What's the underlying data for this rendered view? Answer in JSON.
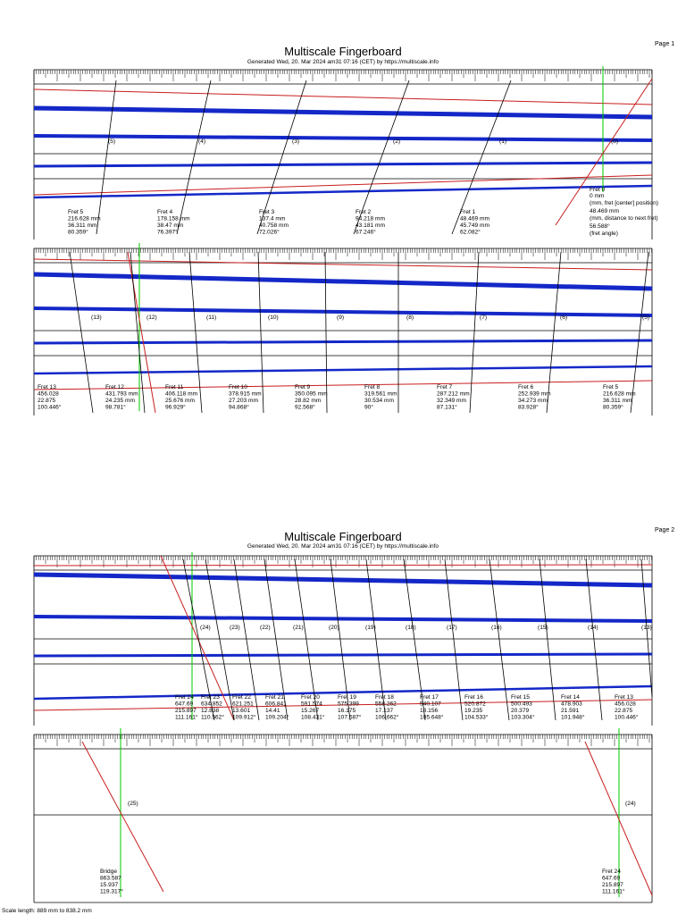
{
  "pages": [
    {
      "label": "Page 1",
      "title": "Multiscale Fingerboard",
      "subtitle": "Generated Wed, 20. Mar 2024 am31 07:16 (CET) by https://multiscale.info"
    },
    {
      "label": "Page 2",
      "title": "Multiscale Fingerboard",
      "subtitle": "Generated Wed, 20. Mar 2024 am31 07:16 (CET) by https://multiscale.info"
    }
  ],
  "strips": [
    {
      "fret_numbers": [
        "(5)",
        "(4)",
        "(3)",
        "(2)",
        "(1)",
        "(0)"
      ],
      "frets": [
        {
          "name": "Fret 5",
          "position": "216.628 mm",
          "distance": "36.311 mm",
          "angle": "80.359°"
        },
        {
          "name": "Fret 4",
          "position": "178.158 mm",
          "distance": "38.47 mm",
          "angle": "76.397°"
        },
        {
          "name": "Fret 3",
          "position": "137.4 mm",
          "distance": "40.758 mm",
          "angle": "72.026°"
        },
        {
          "name": "Fret 2",
          "position": "94.218 mm",
          "distance": "43.181 mm",
          "angle": "67.246°"
        },
        {
          "name": "Fret 1",
          "position": "48.469 mm",
          "distance": "45.749 mm",
          "angle": "62.082°"
        }
      ],
      "legend": {
        "name": "Fret 0",
        "position": "0 mm",
        "position_note": "(mm, fret [center] position)",
        "distance": "48.469 mm",
        "distance_note": "(mm, distance to next fret)",
        "angle": "56.588°",
        "angle_note": "(fret angle)"
      }
    },
    {
      "fret_numbers": [
        "(13)",
        "(12)",
        "(11)",
        "(10)",
        "(9)",
        "(8)",
        "(7)",
        "(6)",
        "(5)"
      ],
      "frets": [
        {
          "name": "Fret 13",
          "position": "456.028",
          "distance": "22.875",
          "angle": "100.446°"
        },
        {
          "name": "Fret 12",
          "position": "431.793 mm",
          "distance": "24.235 mm",
          "angle": "98.781°"
        },
        {
          "name": "Fret 11",
          "position": "406.118 mm",
          "distance": "25.676 mm",
          "angle": "96.929°"
        },
        {
          "name": "Fret 10",
          "position": "378.915 mm",
          "distance": "27.203 mm",
          "angle": "94.868°"
        },
        {
          "name": "Fret 9",
          "position": "350.095 mm",
          "distance": "28.82 mm",
          "angle": "92.568°"
        },
        {
          "name": "Fret 8",
          "position": "319.561 mm",
          "distance": "30.534 mm",
          "angle": "90°"
        },
        {
          "name": "Fret 7",
          "position": "287.212 mm",
          "distance": "32.349 mm",
          "angle": "87.131°"
        },
        {
          "name": "Fret 6",
          "position": "252.939 mm",
          "distance": "34.273 mm",
          "angle": "83.928°"
        },
        {
          "name": "Fret 5",
          "position": "216.628 mm",
          "distance": "36.311 mm",
          "angle": "80.359°"
        }
      ]
    },
    {
      "fret_numbers": [
        "(24)",
        "(23)",
        "(22)",
        "(21)",
        "(20)",
        "(19)",
        "(18)",
        "(17)",
        "(16)",
        "(15)",
        "(14)",
        "(13)"
      ],
      "frets": [
        {
          "name": "Fret 24",
          "position": "647.69",
          "distance": "215.897",
          "angle": "111.161°"
        },
        {
          "name": "Fret 23",
          "position": "634.852",
          "distance": "12.838",
          "angle": "110.562°"
        },
        {
          "name": "Fret 22",
          "position": "621.251",
          "distance": "13.601",
          "angle": "109.912°"
        },
        {
          "name": "Fret 21",
          "position": "606.841",
          "distance": "14.41",
          "angle": "109.204°"
        },
        {
          "name": "Fret 20",
          "position": "591.574",
          "distance": "15.267",
          "angle": "108.431°"
        },
        {
          "name": "Fret 19",
          "position": "575.399",
          "distance": "16.175",
          "angle": "107.587°"
        },
        {
          "name": "Fret 18",
          "position": "558.262",
          "distance": "17.137",
          "angle": "106.662°"
        },
        {
          "name": "Fret 17",
          "position": "540.107",
          "distance": "18.156",
          "angle": "105.648°"
        },
        {
          "name": "Fret 16",
          "position": "520.872",
          "distance": "19.235",
          "angle": "104.533°"
        },
        {
          "name": "Fret 15",
          "position": "500.493",
          "distance": "20.379",
          "angle": "103.304°"
        },
        {
          "name": "Fret 14",
          "position": "478.903",
          "distance": "21.591",
          "angle": "101.948°"
        },
        {
          "name": "Fret 13",
          "position": "456.028",
          "distance": "22.875",
          "angle": "100.446°"
        }
      ]
    },
    {
      "fret_numbers": [
        "(25)",
        "(24)"
      ],
      "frets": [
        {
          "name": "Bridge",
          "position": "863.587",
          "distance": "15.937",
          "angle": "119.317°"
        },
        {
          "name": "Fret 24",
          "position": "647.69",
          "distance": "215.897",
          "angle": "111.161°"
        }
      ]
    }
  ],
  "footer": "Scale length: 889 mm to 838.2 mm",
  "colors": {
    "string": "#1428c8",
    "edge": "#c81e1e",
    "center": "#00c800",
    "line": "#000000"
  }
}
